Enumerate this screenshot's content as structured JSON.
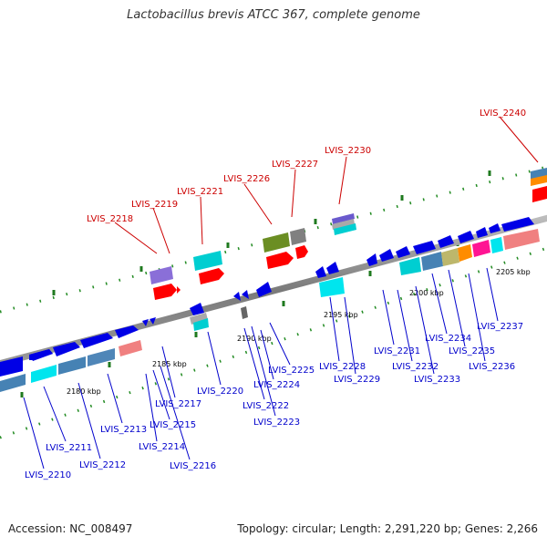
{
  "title": "Lactobacillus brevis ATCC 367, complete genome",
  "accession": "Accession: NC_008497",
  "summary": "Topology: circular; Length: 2,291,220 bp; Genes: 2,266",
  "colors": {
    "highlight_label": "#cc0000",
    "label": "#0000cc",
    "backbone": "#888888",
    "tick_dots": "#228b22"
  },
  "scale_ticks": [
    "2180 kbp",
    "2185 kbp",
    "2190 kbp",
    "2195 kbp",
    "2200 kbp",
    "2205 kbp"
  ],
  "highlighted_genes": [
    "LVIS_2218",
    "LVIS_2219",
    "LVIS_2221",
    "LVIS_2226",
    "LVIS_2227",
    "LVIS_2230",
    "LVIS_2240"
  ],
  "genes": [
    "LVIS_2210",
    "LVIS_2211",
    "LVIS_2212",
    "LVIS_2213",
    "LVIS_2214",
    "LVIS_2215",
    "LVIS_2216",
    "LVIS_2217",
    "LVIS_2220",
    "LVIS_2222",
    "LVIS_2223",
    "LVIS_2224",
    "LVIS_2225",
    "LVIS_2228",
    "LVIS_2229",
    "LVIS_2231",
    "LVIS_2232",
    "LVIS_2233",
    "LVIS_2234",
    "LVIS_2235",
    "LVIS_2236",
    "LVIS_2237"
  ]
}
